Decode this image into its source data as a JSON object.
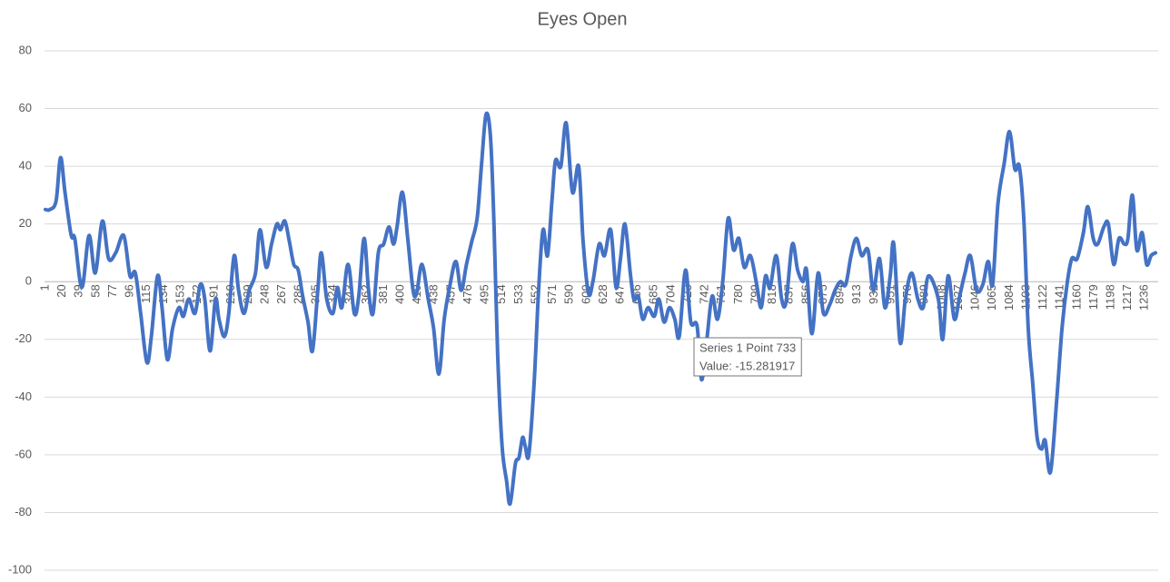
{
  "chart_data": {
    "type": "line",
    "title": "Eyes Open",
    "x": [
      1,
      6,
      13,
      18,
      23,
      30,
      34,
      42,
      50,
      57,
      65,
      72,
      80,
      89,
      96,
      102,
      108,
      115,
      120,
      127,
      132,
      138,
      144,
      151,
      156,
      162,
      169,
      175,
      180,
      186,
      192,
      196,
      202,
      207,
      213,
      218,
      224,
      230,
      237,
      242,
      249,
      255,
      261,
      265,
      270,
      275,
      280,
      285,
      290,
      296,
      301,
      307,
      311,
      317,
      324,
      329,
      334,
      341,
      348,
      353,
      359,
      364,
      369,
      375,
      381,
      387,
      392,
      396,
      402,
      408,
      414,
      418,
      424,
      431,
      437,
      443,
      449,
      455,
      462,
      468,
      474,
      480,
      486,
      491,
      496,
      501,
      505,
      509,
      514,
      519,
      523,
      529,
      533,
      537,
      540,
      544,
      550,
      555,
      560,
      565,
      570,
      574,
      580,
      586,
      593,
      600,
      605,
      611,
      616,
      623,
      629,
      636,
      642,
      647,
      652,
      658,
      662,
      667,
      672,
      678,
      685,
      690,
      696,
      702,
      708,
      713,
      720,
      726,
      733,
      738,
      744,
      750,
      756,
      762,
      768,
      774,
      780,
      786,
      793,
      800,
      805,
      810,
      815,
      822,
      828,
      833,
      840,
      846,
      852,
      856,
      862,
      869,
      875,
      882,
      888,
      894,
      900,
      906,
      912,
      918,
      925,
      931,
      938,
      944,
      950,
      954,
      961,
      967,
      974,
      981,
      987,
      993,
      1004,
      1009,
      1015,
      1022,
      1028,
      1034,
      1040,
      1047,
      1054,
      1060,
      1065,
      1071,
      1078,
      1084,
      1090,
      1095,
      1100,
      1105,
      1110,
      1115,
      1120,
      1124,
      1130,
      1137,
      1143,
      1149,
      1154,
      1160,
      1167,
      1172,
      1178,
      1183,
      1190,
      1195,
      1201,
      1207,
      1213,
      1217,
      1222,
      1227,
      1233,
      1238,
      1243,
      1248
    ],
    "series": [
      {
        "name": "Series 1",
        "color": "#4472c4",
        "values": [
          25,
          25,
          28,
          43,
          31,
          16,
          15,
          -2,
          16,
          3,
          21,
          8,
          10,
          16,
          2,
          3,
          -11,
          -28,
          -19,
          2,
          -9,
          -27,
          -16,
          -9,
          -12,
          -6,
          -11,
          -1,
          -6,
          -24,
          -6,
          -13,
          -19,
          -11,
          9,
          -3,
          -11,
          -3,
          3,
          18,
          5,
          13,
          20,
          18,
          21,
          14,
          6,
          4,
          -5,
          -14,
          -24,
          -3,
          10,
          -6,
          -11,
          -2,
          -9,
          6,
          -11,
          -5,
          15,
          -3,
          -11,
          10,
          13,
          19,
          13,
          19,
          31,
          15,
          -3,
          -4,
          6,
          -6,
          -16,
          -32,
          -13,
          -2,
          7,
          -3,
          6,
          14,
          22,
          41,
          58,
          50,
          19,
          -25,
          -57,
          -69,
          -77,
          -63,
          -61,
          -54,
          -57,
          -60,
          -35,
          -3,
          18,
          9,
          28,
          42,
          40,
          55,
          31,
          40,
          14,
          -4,
          0,
          13,
          9,
          18,
          -2,
          8,
          20,
          3,
          -6,
          -5,
          -13,
          -9,
          -12,
          -6,
          -14,
          -9,
          -13,
          -19,
          4,
          -14,
          -15.281917,
          -34,
          -20,
          -5,
          -13,
          0.5,
          22,
          11,
          15,
          5,
          9,
          -1,
          -9,
          2,
          -2,
          9,
          -6,
          -7,
          13,
          4,
          0,
          4,
          -18,
          3,
          -11,
          -8,
          -3,
          0,
          -1,
          9,
          15,
          9,
          11,
          -3,
          8,
          -9,
          2,
          13,
          -21,
          -6,
          3,
          -6,
          -9,
          2,
          -6,
          -20,
          2,
          -13,
          -5,
          3,
          9,
          -3,
          -1,
          7,
          -1,
          27,
          41,
          52,
          39,
          40,
          22,
          -16,
          -35,
          -54,
          -58,
          -55,
          -66,
          -41,
          -16,
          0,
          8,
          8,
          17,
          26,
          15,
          13,
          19,
          20,
          6,
          15,
          13,
          15,
          30,
          11,
          17,
          6,
          9,
          10
        ]
      }
    ],
    "xlim": [
      0,
      1251
    ],
    "xticks": [
      1,
      20,
      39,
      58,
      77,
      96,
      115,
      134,
      153,
      172,
      191,
      210,
      229,
      248,
      267,
      286,
      305,
      324,
      343,
      362,
      381,
      400,
      419,
      438,
      457,
      476,
      495,
      514,
      533,
      552,
      571,
      590,
      609,
      628,
      647,
      666,
      685,
      704,
      723,
      742,
      761,
      780,
      799,
      818,
      837,
      856,
      875,
      894,
      913,
      932,
      951,
      970,
      989,
      1008,
      1027,
      1046,
      1065,
      1084,
      1103,
      1122,
      1141,
      1160,
      1179,
      1198,
      1217,
      1236
    ],
    "ylim": [
      -100,
      80
    ],
    "yticks": [
      -100,
      -80,
      -60,
      -40,
      -20,
      0,
      20,
      40,
      60,
      80
    ],
    "grid": true,
    "annotations": [
      "Series 1 Point 733",
      "Value: -15.281917"
    ]
  }
}
